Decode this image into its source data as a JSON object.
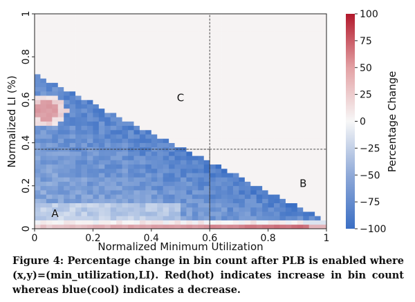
{
  "chart_data": {
    "type": "heatmap",
    "title": "",
    "xlabel": "Normalized Minimum Utilization",
    "ylabel": "Normalized LI (%)",
    "xlim": [
      0,
      1
    ],
    "ylim": [
      0,
      1
    ],
    "x_ticks": [
      "0",
      "0.2",
      "0.4",
      "0.6",
      "0.8",
      "1"
    ],
    "x_tick_values": [
      0,
      0.2,
      0.4,
      0.6,
      0.8,
      1
    ],
    "y_ticks": [
      "0",
      "0.2",
      "0.4",
      "0.6",
      "0.8",
      "1"
    ],
    "y_tick_values": [
      0,
      0.2,
      0.4,
      0.6,
      0.8,
      1
    ],
    "colorbar": {
      "label": "Percentage Change",
      "min": -100,
      "max": 100,
      "ticks": [
        "100",
        "75",
        "50",
        "25",
        "0",
        "−25",
        "−50",
        "−75",
        "−100"
      ],
      "tick_values": [
        100,
        75,
        50,
        25,
        0,
        -25,
        -50,
        -75,
        -100
      ],
      "colormap": "coolwarm (blue = decrease, red = increase)",
      "color_low": "#3b6fc4",
      "color_mid": "#f7f7f7",
      "color_high": "#b2182b"
    },
    "grid_bins": 50,
    "background_value": 2,
    "regions": [
      {
        "label": "A",
        "x_range": [
          0,
          0.6
        ],
        "y_range": [
          0,
          0.37
        ],
        "label_at": [
          0.07,
          0.07
        ]
      },
      {
        "label": "B",
        "x_range": [
          0.6,
          1
        ],
        "y_range": [
          0,
          0.37
        ],
        "label_at": [
          0.92,
          0.21
        ]
      },
      {
        "label": "C",
        "x_range": [
          0,
          0.6
        ],
        "y_range": [
          0.37,
          1
        ],
        "label_at": [
          0.5,
          0.61
        ]
      }
    ],
    "pattern_description_values": {
      "bottom_row_y_0_to_0.02": "positive, rising from about +20 near x=0 to about +60 at x=0.9",
      "second_row_y_0.02_to_0.04": "mixed, near 0 to slightly positive",
      "triangle_below_line_y_0.72_minus_0.68x": "negative, about -30 to -85",
      "hot_spot_around_x_0.04_y_0.55": "positive, about +40",
      "outside_triangle": "about +2 (near white)"
    }
  },
  "caption": "Figure 4: Percentage change in bin count after PLB is enabled where (x,y)=(min_utilization,LI). Red(hot) indicates increase in bin count whereas blue(cool) indicates a decrease."
}
